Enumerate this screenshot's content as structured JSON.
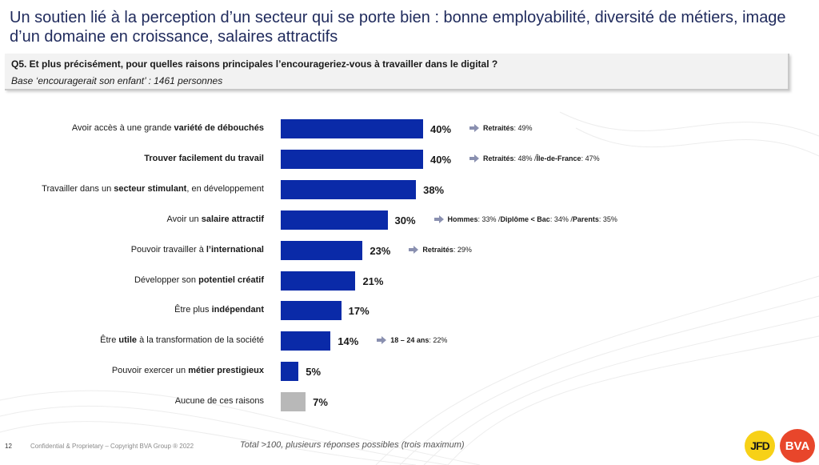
{
  "slide": {
    "title": "Un soutien lié à la perception d’un secteur qui se porte bien : bonne employabilité, diversité de métiers, image d’un domaine en croissance, salaires attractifs",
    "question": "Q5. Et plus précisément, pour quelles raisons principales l’encourageriez-vous à travailler dans le digital ?",
    "base": "Base ‘encouragerait son enfant’ : 1461 personnes"
  },
  "chart_data": {
    "type": "bar",
    "orientation": "horizontal",
    "unit": "%",
    "xlim": [
      0,
      40
    ],
    "grid": false,
    "colors": {
      "primary": "#0a2aa8",
      "neutral": "#b8b8b8",
      "arrow": "#8a90b0"
    },
    "rows": [
      {
        "label": [
          {
            "t": "Avoir accès à une grande ",
            "b": false
          },
          {
            "t": "variété de débouchés",
            "b": true
          }
        ],
        "value": 40,
        "value_label": "40%",
        "color": "primary",
        "note": [
          {
            "t": "Retraités",
            "b": true
          },
          {
            "t": "  : 49%",
            "b": false
          }
        ]
      },
      {
        "label": [
          {
            "t": "Trouver facilement du travail",
            "b": true
          }
        ],
        "value": 40,
        "value_label": "40%",
        "color": "primary",
        "note": [
          {
            "t": "Retraités",
            "b": true
          },
          {
            "t": "  : 48% / ",
            "b": false
          },
          {
            "t": "Île-de-France",
            "b": true
          },
          {
            "t": " : 47%",
            "b": false
          }
        ]
      },
      {
        "label": [
          {
            "t": "Travailler dans un ",
            "b": false
          },
          {
            "t": "secteur stimulant",
            "b": true
          },
          {
            "t": ", en développement",
            "b": false
          }
        ],
        "value": 38,
        "value_label": "38%",
        "color": "primary",
        "note": []
      },
      {
        "label": [
          {
            "t": "Avoir un ",
            "b": false
          },
          {
            "t": "salaire attractif",
            "b": true
          }
        ],
        "value": 30,
        "value_label": "30%",
        "color": "primary",
        "note": [
          {
            "t": "Hommes",
            "b": true
          },
          {
            "t": " : 33% / ",
            "b": false
          },
          {
            "t": "Diplôme < Bac",
            "b": true
          },
          {
            "t": " : 34% / ",
            "b": false
          },
          {
            "t": "Parents",
            "b": true
          },
          {
            "t": " : 35%",
            "b": false
          }
        ]
      },
      {
        "label": [
          {
            "t": "Pouvoir travailler à ",
            "b": false
          },
          {
            "t": "l’international",
            "b": true
          }
        ],
        "value": 23,
        "value_label": "23%",
        "color": "primary",
        "note": [
          {
            "t": "Retraités",
            "b": true
          },
          {
            "t": "  : 29%",
            "b": false
          }
        ]
      },
      {
        "label": [
          {
            "t": "Développer son ",
            "b": false
          },
          {
            "t": "potentiel créatif",
            "b": true
          }
        ],
        "value": 21,
        "value_label": "21%",
        "color": "primary",
        "note": []
      },
      {
        "label": [
          {
            "t": "Être plus ",
            "b": false
          },
          {
            "t": "indépendant",
            "b": true
          }
        ],
        "value": 17,
        "value_label": "17%",
        "color": "primary",
        "note": []
      },
      {
        "label": [
          {
            "t": "Être ",
            "b": false
          },
          {
            "t": "utile",
            "b": true
          },
          {
            "t": " à la transformation de la société",
            "b": false
          }
        ],
        "value": 14,
        "value_label": "14%",
        "color": "primary",
        "note": [
          {
            "t": "18 – 24 ans",
            "b": true
          },
          {
            "t": " : 22%",
            "b": false
          }
        ]
      },
      {
        "label": [
          {
            "t": "Pouvoir exercer un ",
            "b": false
          },
          {
            "t": "métier prestigieux",
            "b": true
          }
        ],
        "value": 5,
        "value_label": "5%",
        "color": "primary",
        "note": []
      },
      {
        "label": [
          {
            "t": "Aucune de ces raisons",
            "b": false
          }
        ],
        "value": 7,
        "value_label": "7%",
        "color": "neutral",
        "note": []
      }
    ]
  },
  "footer": {
    "page_number": "12",
    "confidential": "Confidential & Proprietary – Copyright BVA Group ® 2022",
    "total_note": "Total >100, plusieurs réponses possibles (trois maximum)"
  },
  "logos": {
    "jfd": "JFD",
    "bva": "BVA",
    "jfd_color": "#f7d117",
    "bva_color": "#e8462b"
  }
}
